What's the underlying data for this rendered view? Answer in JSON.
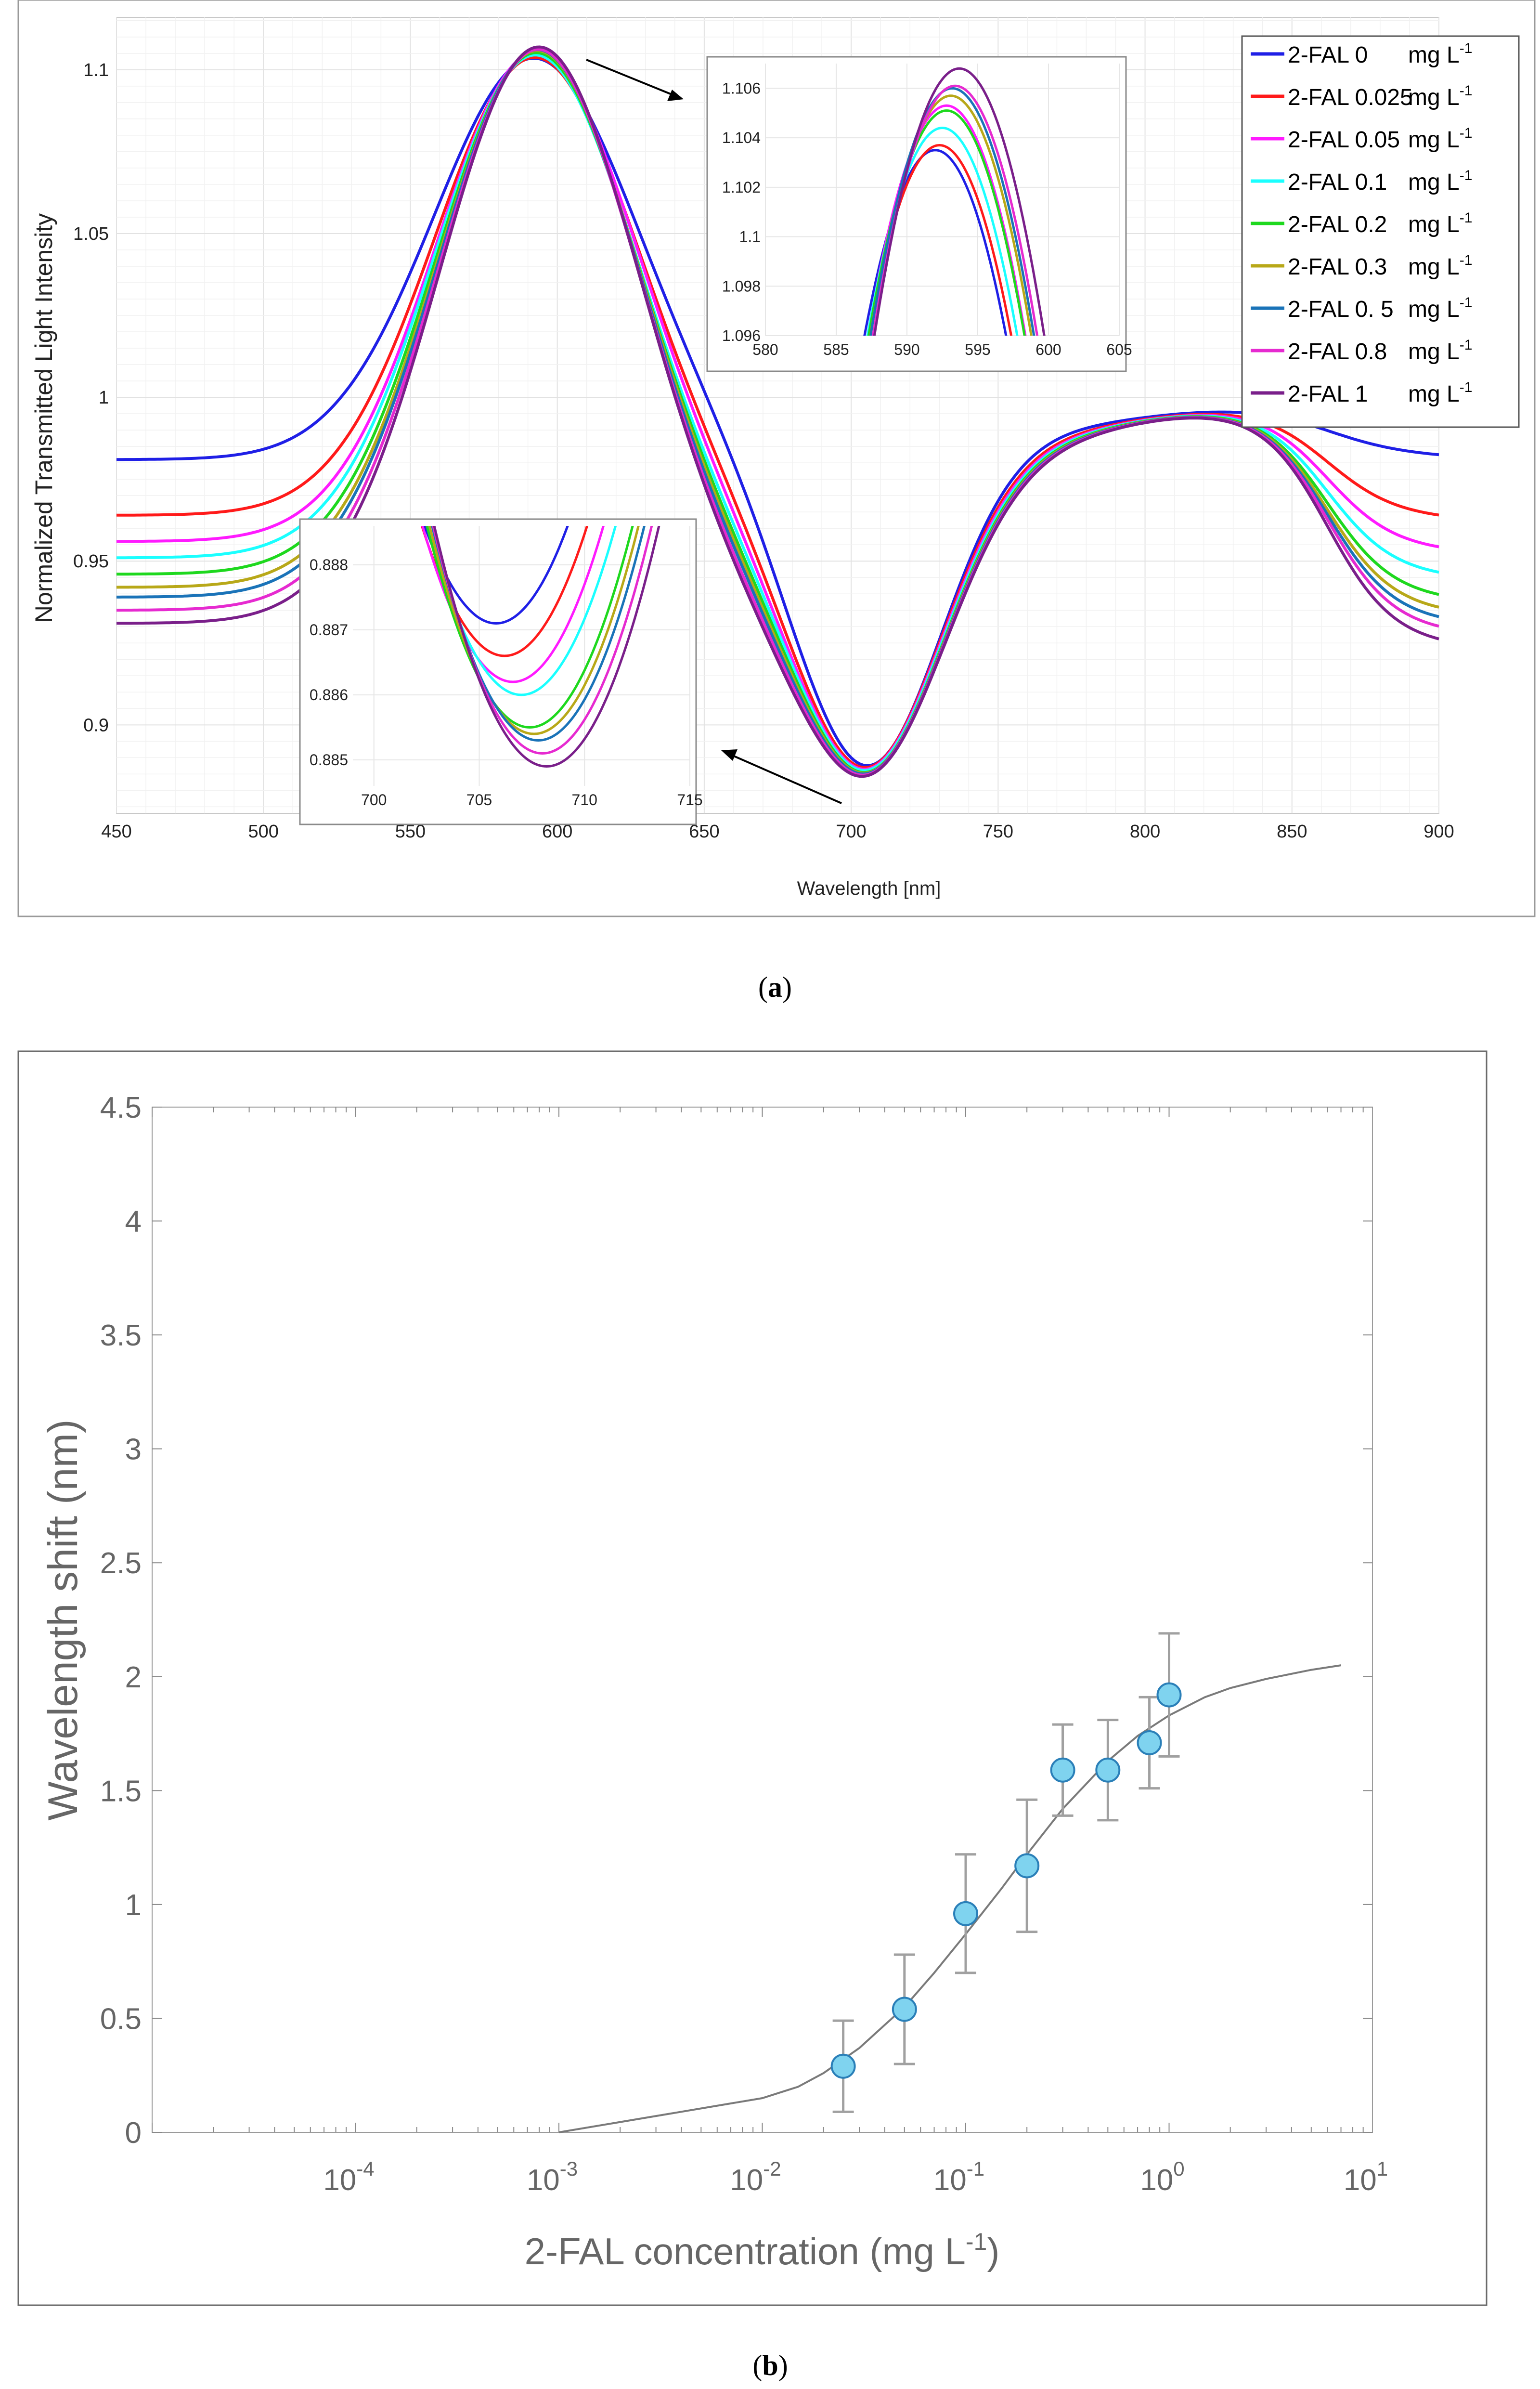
{
  "figure": {
    "caption_a": "a",
    "caption_b": "b"
  },
  "chart_data": [
    {
      "id": "a",
      "type": "line",
      "title": "",
      "xlabel": "Wavelength [nm]",
      "ylabel": "Normalized Transmitted Light Intensity",
      "xlim": [
        450,
        900
      ],
      "ylim": [
        0.873,
        1.116
      ],
      "xticks": [
        450,
        500,
        550,
        600,
        650,
        700,
        750,
        800,
        850,
        900
      ],
      "xtick_labels": [
        "450",
        "500",
        "550",
        "600",
        "650",
        "700",
        "750",
        "800",
        "850",
        "900"
      ],
      "yticks": [
        0.9,
        0.95,
        1,
        1.05,
        1.1
      ],
      "ytick_labels": [
        "0.9",
        "0.95",
        "1",
        "1.05",
        "1.1"
      ],
      "grid": true,
      "legend_position": "top-right",
      "series": [
        {
          "name": "2-FAL 0",
          "unit_text": "mg L",
          "superscript": "-1",
          "color": "#1f1fe6",
          "peak": 1.1035,
          "peak_x": 592.0,
          "dip": 0.8871,
          "dip_x": 705.8,
          "left_level": 0.981,
          "right_level": 0.981
        },
        {
          "name": "2-FAL 0.025",
          "unit_text": "mg L",
          "superscript": "-1",
          "color": "#ff1a1a",
          "peak": 1.1037,
          "peak_x": 592.3,
          "dip": 0.8866,
          "dip_x": 706.2,
          "left_level": 0.964,
          "right_level": 0.962
        },
        {
          "name": "2-FAL 0.05",
          "unit_text": "mg L",
          "superscript": "-1",
          "color": "#ff1aff",
          "peak": 1.1053,
          "peak_x": 592.8,
          "dip": 0.8862,
          "dip_x": 706.6,
          "left_level": 0.956,
          "right_level": 0.952
        },
        {
          "name": "2-FAL 0.1",
          "unit_text": "mg L",
          "superscript": "-1",
          "color": "#1affff",
          "peak": 1.1044,
          "peak_x": 592.5,
          "dip": 0.886,
          "dip_x": 707.0,
          "left_level": 0.951,
          "right_level": 0.944
        },
        {
          "name": "2-FAL 0.2",
          "unit_text": "mg L",
          "superscript": "-1",
          "color": "#1ed81e",
          "peak": 1.1051,
          "peak_x": 592.8,
          "dip": 0.8855,
          "dip_x": 707.4,
          "left_level": 0.946,
          "right_level": 0.937
        },
        {
          "name": "2-FAL 0.3",
          "unit_text": "mg L",
          "superscript": "-1",
          "color": "#b8a818",
          "peak": 1.1057,
          "peak_x": 593.1,
          "dip": 0.8854,
          "dip_x": 707.6,
          "left_level": 0.942,
          "right_level": 0.933
        },
        {
          "name": "2-FAL 0. 5",
          "unit_text": "mg L",
          "superscript": "-1",
          "color": "#1a73b8",
          "peak": 1.106,
          "peak_x": 593.2,
          "dip": 0.8853,
          "dip_x": 707.8,
          "left_level": 0.939,
          "right_level": 0.93
        },
        {
          "name": "2-FAL 0.8",
          "unit_text": "mg L",
          "superscript": "-1",
          "color": "#e62ad0",
          "peak": 1.1061,
          "peak_x": 593.4,
          "dip": 0.8851,
          "dip_x": 708.0,
          "left_level": 0.935,
          "right_level": 0.927
        },
        {
          "name": "2-FAL 1",
          "unit_text": "mg L",
          "superscript": "-1",
          "color": "#7a1f8a",
          "peak": 1.1068,
          "peak_x": 593.7,
          "dip": 0.8849,
          "dip_x": 708.2,
          "left_level": 0.931,
          "right_level": 0.923
        }
      ],
      "insets": [
        {
          "id": "peak-inset",
          "xlim": [
            580,
            605
          ],
          "ylim": [
            1.096,
            1.107
          ],
          "xticks": [
            580,
            585,
            590,
            595,
            600,
            605
          ],
          "xtick_labels": [
            "580",
            "585",
            "590",
            "595",
            "600",
            "605"
          ],
          "yticks": [
            1.096,
            1.098,
            1.1,
            1.102,
            1.104,
            1.106
          ],
          "ytick_labels": [
            "1.096",
            "1.098",
            "1.1",
            "1.102",
            "1.104",
            "1.106"
          ]
        },
        {
          "id": "dip-inset",
          "xlim": [
            699,
            715
          ],
          "ylim": [
            0.8846,
            0.8886
          ],
          "xticks": [
            700,
            705,
            710,
            715
          ],
          "xtick_labels": [
            "700",
            "705",
            "710",
            "715"
          ],
          "yticks": [
            0.885,
            0.886,
            0.887,
            0.888
          ],
          "ytick_labels": [
            "0.885",
            "0.886",
            "0.887",
            "0.888"
          ]
        }
      ]
    },
    {
      "id": "b",
      "type": "scatter",
      "title": "",
      "xlabel": "2-FAL concentration (mg L",
      "xlabel_superscript": "-1",
      "xlabel_suffix": ")",
      "ylabel": "Wavelength shift (nm)",
      "xscale": "log",
      "xlim_exp": [
        -5,
        1
      ],
      "ylim": [
        0,
        4.5
      ],
      "xtick_exponents": [
        -4,
        -3,
        -2,
        -1,
        0,
        1
      ],
      "xtick_base": "10",
      "xtick_labels": [
        "-4",
        "-3",
        "-2",
        "-1",
        "0",
        "1"
      ],
      "yticks": [
        0,
        0.5,
        1,
        1.5,
        2,
        2.5,
        3,
        3.5,
        4,
        4.5
      ],
      "ytick_labels": [
        "0",
        "0.5",
        "1",
        "1.5",
        "2",
        "2.5",
        "3",
        "3.5",
        "4",
        "4.5"
      ],
      "grid": false,
      "points": [
        {
          "x": 0.025,
          "y": 0.29,
          "err": 0.2
        },
        {
          "x": 0.05,
          "y": 0.54,
          "err": 0.24
        },
        {
          "x": 0.1,
          "y": 0.96,
          "err": 0.26
        },
        {
          "x": 0.2,
          "y": 1.17,
          "err": 0.29
        },
        {
          "x": 0.3,
          "y": 1.59,
          "err": 0.2
        },
        {
          "x": 0.5,
          "y": 1.59,
          "err": 0.22
        },
        {
          "x": 0.8,
          "y": 1.71,
          "err": 0.2
        },
        {
          "x": 1.0,
          "y": 1.92,
          "err": 0.27
        }
      ],
      "fit_curve": {
        "x": [
          0.001,
          0.01,
          0.015,
          0.02,
          0.03,
          0.05,
          0.07,
          0.1,
          0.15,
          0.2,
          0.3,
          0.5,
          0.7,
          1.0,
          1.5,
          2,
          3,
          5,
          7
        ],
        "y": [
          0.0,
          0.15,
          0.2,
          0.26,
          0.37,
          0.55,
          0.7,
          0.87,
          1.07,
          1.22,
          1.42,
          1.63,
          1.74,
          1.83,
          1.91,
          1.95,
          1.99,
          2.03,
          2.05
        ]
      },
      "point_color": "#7fd3ef",
      "point_edge": "#2a7fb8",
      "errorbar_color": "#a0a0a0",
      "fit_color": "#7a7a7a"
    }
  ]
}
